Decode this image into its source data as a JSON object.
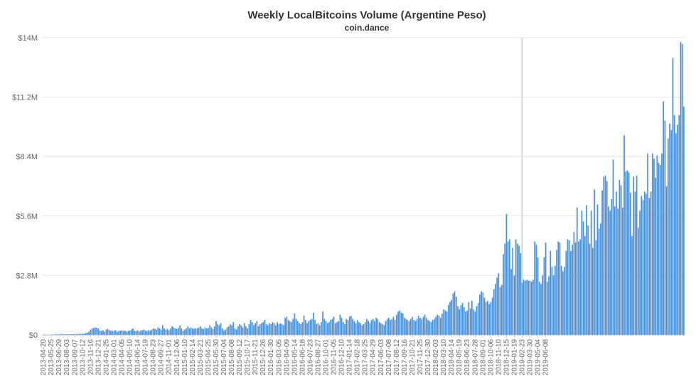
{
  "chart_data": {
    "type": "bar",
    "title": "Weekly LocalBitcoins Volume (Argentine Peso)",
    "subtitle": "coin.dance",
    "xlabel": "",
    "ylabel": "",
    "ylim": [
      0,
      14000000
    ],
    "y_ticks": [
      {
        "value": 0,
        "label": "$0"
      },
      {
        "value": 2800000,
        "label": "$2.8M"
      },
      {
        "value": 5600000,
        "label": "$5.6M"
      },
      {
        "value": 8400000,
        "label": "$8.4M"
      },
      {
        "value": 11200000,
        "label": "$11.2M"
      },
      {
        "value": 14000000,
        "label": "$14M"
      }
    ],
    "x_tick_labels": [
      "2013-04-20",
      "2013-05-25",
      "2013-06-29",
      "2013-08-03",
      "2013-09-07",
      "2013-10-12",
      "2013-11-16",
      "2013-12-21",
      "2014-01-25",
      "2014-03-01",
      "2014-04-05",
      "2014-05-10",
      "2014-06-14",
      "2014-07-19",
      "2014-08-23",
      "2014-09-27",
      "2014-11-01",
      "2014-12-06",
      "2015-01-10",
      "2015-02-14",
      "2015-03-21",
      "2015-04-25",
      "2015-05-30",
      "2015-07-04",
      "2015-08-08",
      "2015-09-12",
      "2015-10-17",
      "2015-11-21",
      "2015-12-26",
      "2016-01-30",
      "2016-03-05",
      "2016-04-09",
      "2016-05-14",
      "2016-06-18",
      "2016-07-23",
      "2016-08-27",
      "2016-10-01",
      "2016-11-05",
      "2016-12-10",
      "2017-01-14",
      "2017-02-18",
      "2017-03-25",
      "2017-04-29",
      "2017-06-03",
      "2017-07-08",
      "2017-08-12",
      "2017-09-16",
      "2017-10-21",
      "2017-11-25",
      "2017-12-30",
      "2018-02-03",
      "2018-03-10",
      "2018-04-14",
      "2018-05-19",
      "2018-06-23",
      "2018-07-28",
      "2018-09-01",
      "2018-10-06",
      "2018-11-10",
      "2018-12-15",
      "2019-01-19",
      "2019-02-23",
      "2019-03-30",
      "2019-05-04",
      "2019-06-08"
    ],
    "highlight_week": "2019-02-23",
    "grid": true,
    "legend": "none",
    "bar_color": "#4a90d9",
    "highlight_color": "#d9d9d9",
    "values_millions": [
      0.02,
      0.01,
      0.01,
      0.01,
      0.01,
      0.02,
      0.01,
      0.02,
      0.03,
      0.02,
      0.02,
      0.03,
      0.04,
      0.03,
      0.02,
      0.03,
      0.02,
      0.03,
      0.04,
      0.03,
      0.04,
      0.03,
      0.04,
      0.05,
      0.04,
      0.05,
      0.06,
      0.08,
      0.1,
      0.15,
      0.25,
      0.3,
      0.32,
      0.35,
      0.33,
      0.3,
      0.2,
      0.18,
      0.22,
      0.15,
      0.25,
      0.28,
      0.22,
      0.2,
      0.18,
      0.2,
      0.22,
      0.15,
      0.18,
      0.2,
      0.22,
      0.18,
      0.2,
      0.15,
      0.18,
      0.2,
      0.25,
      0.3,
      0.2,
      0.18,
      0.22,
      0.15,
      0.2,
      0.22,
      0.25,
      0.2,
      0.18,
      0.22,
      0.2,
      0.25,
      0.3,
      0.28,
      0.25,
      0.35,
      0.3,
      0.25,
      0.45,
      0.3,
      0.25,
      0.28,
      0.22,
      0.3,
      0.4,
      0.35,
      0.3,
      0.28,
      0.32,
      0.45,
      0.3,
      0.2,
      0.25,
      0.3,
      0.4,
      0.3,
      0.35,
      0.3,
      0.28,
      0.32,
      0.3,
      0.35,
      0.4,
      0.3,
      0.28,
      0.35,
      0.3,
      0.32,
      0.45,
      0.35,
      0.28,
      0.4,
      0.65,
      0.5,
      0.45,
      0.55,
      0.3,
      0.2,
      0.25,
      0.35,
      0.4,
      0.5,
      0.45,
      0.6,
      0.3,
      0.25,
      0.4,
      0.5,
      0.45,
      0.35,
      0.55,
      0.4,
      0.3,
      0.5,
      0.7,
      0.6,
      0.45,
      0.55,
      0.65,
      0.4,
      0.5,
      0.55,
      0.6,
      0.7,
      0.5,
      0.45,
      0.55,
      0.5,
      0.6,
      0.55,
      0.45,
      0.6,
      0.5,
      0.55,
      0.5,
      0.45,
      0.8,
      0.85,
      0.7,
      0.65,
      0.6,
      0.75,
      1.0,
      0.75,
      0.65,
      0.55,
      0.5,
      0.6,
      0.9,
      0.7,
      0.55,
      0.65,
      0.7,
      0.75,
      1.05,
      0.7,
      0.5,
      0.55,
      0.45,
      0.6,
      1.1,
      0.75,
      0.65,
      0.55,
      0.6,
      0.7,
      0.75,
      0.85,
      0.55,
      0.6,
      0.65,
      0.95,
      0.8,
      0.6,
      0.5,
      0.75,
      0.7,
      0.85,
      0.9,
      0.75,
      0.65,
      0.55,
      0.7,
      0.6,
      0.55,
      0.45,
      0.5,
      0.6,
      0.75,
      0.65,
      0.55,
      0.7,
      0.75,
      0.65,
      0.8,
      0.75,
      0.6,
      0.55,
      0.5,
      0.45,
      0.65,
      0.75,
      0.8,
      0.7,
      0.75,
      0.85,
      0.7,
      0.95,
      1.1,
      1.15,
      1.05,
      1.0,
      0.8,
      0.75,
      0.7,
      0.65,
      0.75,
      0.85,
      0.7,
      0.65,
      0.75,
      0.9,
      0.8,
      0.75,
      0.85,
      0.95,
      0.8,
      0.7,
      0.65,
      0.6,
      0.7,
      0.75,
      0.85,
      0.95,
      0.9,
      0.8,
      1.0,
      1.2,
      1.15,
      1.1,
      1.4,
      1.55,
      1.65,
      1.95,
      2.05,
      1.8,
      1.35,
      1.2,
      1.4,
      1.5,
      1.3,
      1.1,
      1.15,
      1.55,
      1.25,
      1.6,
      1.2,
      1.1,
      1.35,
      1.5,
      1.9,
      2.05,
      2.0,
      1.75,
      1.55,
      1.6,
      1.45,
      1.55,
      1.75,
      2.15,
      2.4,
      2.7,
      2.9,
      2.25,
      2.35,
      3.8,
      4.3,
      5.7,
      4.4,
      4.5,
      3.1,
      4.1,
      2.8,
      4.5,
      4.3,
      4.2,
      3.85,
      2.45,
      2.6,
      2.55,
      2.6,
      2.55,
      2.55,
      2.5,
      2.6,
      4.4,
      4.25,
      3.65,
      2.5,
      2.4,
      2.8,
      3.65,
      4.35,
      2.5,
      2.75,
      3.95,
      3.2,
      2.8,
      3.25,
      4.0,
      4.4,
      4.35,
      3.25,
      3.0,
      3.2,
      3.95,
      4.5,
      4.45,
      3.95,
      4.25,
      4.85,
      4.35,
      6.0,
      4.4,
      4.5,
      5.85,
      5.35,
      4.65,
      6.1,
      5.15,
      4.3,
      5.85,
      4.1,
      6.85,
      4.45,
      6.15,
      5.0,
      5.25,
      6.8,
      7.45,
      7.5,
      7.25,
      6.05,
      5.85,
      6.4,
      8.25,
      6.05,
      6.75,
      5.95,
      7.3,
      7.05,
      6.0,
      9.4,
      7.7,
      7.75,
      7.65,
      6.7,
      4.65,
      7.45,
      6.75,
      7.5,
      5.05,
      5.85,
      6.55,
      6.35,
      6.75,
      6.65,
      8.55,
      6.45,
      6.75,
      8.55,
      8.3,
      7.4,
      8.45,
      8.1,
      8.0,
      8.55,
      11.0,
      10.1,
      7.0,
      9.25,
      9.95,
      9.65,
      13.05,
      10.35,
      9.5,
      9.9,
      10.35,
      13.8,
      13.7,
      10.75
    ],
    "value_scale": "millions"
  }
}
